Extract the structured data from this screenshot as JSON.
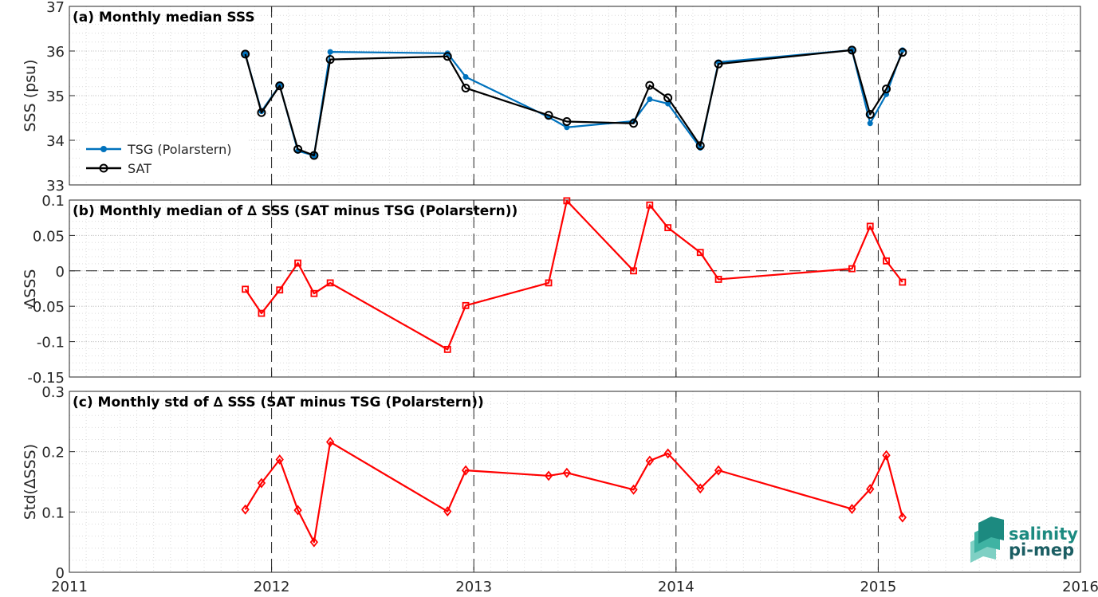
{
  "chart_data": [
    {
      "id": "a",
      "type": "line",
      "title": "(a) Monthly median SSS",
      "xlabel": "",
      "ylabel": "SSS (psu)",
      "xlim": [
        2011,
        2016
      ],
      "ylim": [
        33,
        37
      ],
      "xticks": [
        "2011",
        "2012",
        "2013",
        "2014",
        "2015",
        "2016"
      ],
      "yticks": [
        "33",
        "34",
        "35",
        "36",
        "37"
      ],
      "grid": true,
      "legend": "bottom-left",
      "series": [
        {
          "name": "TSG (Polarstern)",
          "color": "#0072bd",
          "marker": "dot",
          "x": [
            2011.87,
            2011.95,
            2012.04,
            2012.13,
            2012.21,
            2012.29,
            2012.87,
            2012.96,
            2013.37,
            2013.46,
            2013.79,
            2013.87,
            2013.96,
            2014.12,
            2014.21,
            2014.87,
            2014.96,
            2015.04,
            2015.12
          ],
          "y": [
            35.93,
            34.65,
            35.23,
            33.76,
            33.66,
            35.98,
            35.95,
            35.42,
            34.52,
            34.29,
            34.43,
            34.92,
            34.82,
            33.83,
            35.75,
            36.02,
            34.38,
            35.03,
            36.02
          ]
        },
        {
          "name": "SAT",
          "color": "#000000",
          "marker": "circle",
          "x": [
            2011.87,
            2011.95,
            2012.04,
            2012.13,
            2012.21,
            2012.29,
            2012.87,
            2012.96,
            2013.37,
            2013.46,
            2013.79,
            2013.87,
            2013.96,
            2014.12,
            2014.21,
            2014.87,
            2014.96,
            2015.04,
            2015.12
          ],
          "y": [
            35.93,
            34.62,
            35.22,
            33.8,
            33.66,
            35.81,
            35.88,
            35.17,
            34.56,
            34.42,
            34.38,
            35.23,
            34.95,
            33.88,
            35.71,
            36.02,
            34.58,
            35.15,
            35.97
          ]
        }
      ]
    },
    {
      "id": "b",
      "type": "line",
      "title": "(b) Monthly median of ∆ SSS (SAT minus TSG (Polarstern))",
      "xlabel": "",
      "ylabel": "∆SSS",
      "xlim": [
        2011,
        2016
      ],
      "ylim": [
        -0.15,
        0.1
      ],
      "xticks": [
        "2011",
        "2012",
        "2013",
        "2014",
        "2015",
        "2016"
      ],
      "yticks": [
        "-0.15",
        "-0.1",
        "-0.05",
        "0",
        "0.05",
        "0.1"
      ],
      "grid": true,
      "zero_line": true,
      "series": [
        {
          "color": "#ff0000",
          "marker": "square",
          "x": [
            2011.87,
            2011.95,
            2012.04,
            2012.13,
            2012.21,
            2012.29,
            2012.87,
            2012.96,
            2013.37,
            2013.46,
            2013.79,
            2013.87,
            2013.96,
            2014.12,
            2014.21,
            2014.87,
            2014.96,
            2015.04,
            2015.12
          ],
          "y": [
            -0.026,
            -0.06,
            -0.027,
            0.011,
            -0.032,
            -0.017,
            -0.111,
            -0.049,
            -0.017,
            0.099,
            0.0,
            0.093,
            0.061,
            0.026,
            -0.012,
            0.003,
            0.063,
            0.014,
            -0.016
          ]
        }
      ]
    },
    {
      "id": "c",
      "type": "line",
      "title": "(c) Monthly std of ∆ SSS (SAT minus TSG (Polarstern))",
      "xlabel": "",
      "ylabel": "Std(∆SSS)",
      "xlim": [
        2011,
        2016
      ],
      "ylim": [
        0,
        0.3
      ],
      "xticks": [
        "2011",
        "2012",
        "2013",
        "2014",
        "2015",
        "2016"
      ],
      "yticks": [
        "0",
        "0.1",
        "0.2",
        "0.3"
      ],
      "grid": true,
      "series": [
        {
          "color": "#ff0000",
          "marker": "diamond",
          "x": [
            2011.87,
            2011.95,
            2012.04,
            2012.13,
            2012.21,
            2012.29,
            2012.87,
            2012.96,
            2013.37,
            2013.46,
            2013.79,
            2013.87,
            2013.96,
            2014.12,
            2014.21,
            2014.87,
            2014.96,
            2015.04,
            2015.12
          ],
          "y": [
            0.104,
            0.148,
            0.187,
            0.103,
            0.05,
            0.216,
            0.101,
            0.169,
            0.16,
            0.165,
            0.137,
            0.185,
            0.197,
            0.139,
            0.169,
            0.105,
            0.138,
            0.194,
            0.091
          ]
        }
      ]
    }
  ],
  "logo": {
    "line1": "salinity",
    "line2": "pi-mep",
    "color_primary": "#1c8a80",
    "color_secondary": "#1b5e63"
  }
}
